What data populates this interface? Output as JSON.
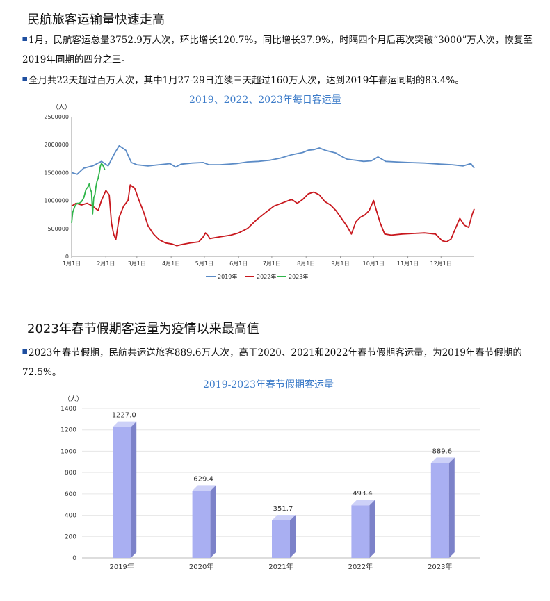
{
  "section1": {
    "title": "民航旅客运输量快速走高",
    "para1": "1月，民航客运总量3752.9万人次，环比增长120.7%，同比增长37.9%，时隔四个月后再次突破“3000”万人次，恢复至2019年同期的四分之三。",
    "para2": "全月共22天超过百万人次，其中1月27-29日连续三天超过160万人次，达到2019年春运同期的83.4%。"
  },
  "section2": {
    "title": "2023年春节假期客运量为疫情以来最高值",
    "para1": "2023年春节假期，民航共运送旅客889.6万人次，高于2020、2021和2022年春节假期客运量，为2019年春节假期的72.5%。"
  },
  "colors": {
    "s2019": "#5b8bc6",
    "s2022": "#c8171d",
    "s2023": "#2fb54a",
    "bar": "#a9aff2",
    "bar_side": "#7c82c9",
    "bar_top": "#cdd1f8",
    "title": "#3d7cc9"
  },
  "chart_data": [
    {
      "type": "line",
      "title": "2019、2022、2023年每日客运量",
      "ylabel": "（人）",
      "ylim": [
        0,
        2500000
      ],
      "yticks": [
        "0",
        "500000",
        "1000000",
        "1500000",
        "2000000",
        "2500000"
      ],
      "xticks": [
        "1月1日",
        "2月1日",
        "3月1日",
        "4月1日",
        "5月1日",
        "6月1日",
        "7月1日",
        "8月1日",
        "9月1日",
        "10月1日",
        "11月1日",
        "12月1日"
      ],
      "x_unit": "day of year (1-365)",
      "legend": [
        "2019年",
        "2022年",
        "2023年"
      ],
      "legend_position": "bottom",
      "series": [
        {
          "name": "2019年",
          "points": [
            [
              1,
              1500000
            ],
            [
              6,
              1470000
            ],
            [
              12,
              1580000
            ],
            [
              20,
              1620000
            ],
            [
              28,
              1700000
            ],
            [
              34,
              1620000
            ],
            [
              40,
              1850000
            ],
            [
              44,
              1980000
            ],
            [
              50,
              1900000
            ],
            [
              55,
              1680000
            ],
            [
              60,
              1640000
            ],
            [
              70,
              1620000
            ],
            [
              80,
              1640000
            ],
            [
              90,
              1660000
            ],
            [
              95,
              1600000
            ],
            [
              100,
              1650000
            ],
            [
              110,
              1670000
            ],
            [
              120,
              1680000
            ],
            [
              125,
              1640000
            ],
            [
              135,
              1640000
            ],
            [
              150,
              1660000
            ],
            [
              160,
              1690000
            ],
            [
              170,
              1700000
            ],
            [
              180,
              1720000
            ],
            [
              190,
              1760000
            ],
            [
              200,
              1820000
            ],
            [
              210,
              1860000
            ],
            [
              215,
              1900000
            ],
            [
              220,
              1910000
            ],
            [
              225,
              1940000
            ],
            [
              230,
              1900000
            ],
            [
              240,
              1850000
            ],
            [
              245,
              1790000
            ],
            [
              250,
              1740000
            ],
            [
              258,
              1720000
            ],
            [
              265,
              1700000
            ],
            [
              272,
              1710000
            ],
            [
              278,
              1780000
            ],
            [
              285,
              1700000
            ],
            [
              295,
              1690000
            ],
            [
              305,
              1680000
            ],
            [
              320,
              1670000
            ],
            [
              335,
              1650000
            ],
            [
              345,
              1640000
            ],
            [
              355,
              1620000
            ],
            [
              362,
              1660000
            ],
            [
              365,
              1580000
            ]
          ]
        },
        {
          "name": "2022年",
          "points": [
            [
              1,
              900000
            ],
            [
              5,
              950000
            ],
            [
              10,
              920000
            ],
            [
              15,
              950000
            ],
            [
              20,
              900000
            ],
            [
              25,
              820000
            ],
            [
              28,
              1000000
            ],
            [
              32,
              1180000
            ],
            [
              35,
              1100000
            ],
            [
              37,
              600000
            ],
            [
              39,
              400000
            ],
            [
              41,
              300000
            ],
            [
              44,
              700000
            ],
            [
              48,
              900000
            ],
            [
              52,
              1000000
            ],
            [
              54,
              1280000
            ],
            [
              58,
              1220000
            ],
            [
              62,
              1000000
            ],
            [
              66,
              800000
            ],
            [
              70,
              550000
            ],
            [
              75,
              400000
            ],
            [
              80,
              300000
            ],
            [
              86,
              240000
            ],
            [
              92,
              220000
            ],
            [
              96,
              190000
            ],
            [
              100,
              210000
            ],
            [
              108,
              240000
            ],
            [
              116,
              260000
            ],
            [
              120,
              350000
            ],
            [
              122,
              420000
            ],
            [
              124,
              380000
            ],
            [
              126,
              320000
            ],
            [
              135,
              350000
            ],
            [
              145,
              380000
            ],
            [
              152,
              420000
            ],
            [
              160,
              500000
            ],
            [
              168,
              650000
            ],
            [
              176,
              780000
            ],
            [
              184,
              900000
            ],
            [
              192,
              960000
            ],
            [
              200,
              1020000
            ],
            [
              205,
              950000
            ],
            [
              210,
              1020000
            ],
            [
              215,
              1120000
            ],
            [
              220,
              1150000
            ],
            [
              225,
              1100000
            ],
            [
              230,
              980000
            ],
            [
              235,
              920000
            ],
            [
              240,
              820000
            ],
            [
              245,
              680000
            ],
            [
              250,
              540000
            ],
            [
              254,
              400000
            ],
            [
              258,
              620000
            ],
            [
              262,
              700000
            ],
            [
              266,
              740000
            ],
            [
              270,
              820000
            ],
            [
              274,
              1000000
            ],
            [
              276,
              860000
            ],
            [
              280,
              600000
            ],
            [
              284,
              400000
            ],
            [
              290,
              380000
            ],
            [
              300,
              400000
            ],
            [
              310,
              410000
            ],
            [
              320,
              420000
            ],
            [
              330,
              400000
            ],
            [
              336,
              280000
            ],
            [
              340,
              260000
            ],
            [
              344,
              310000
            ],
            [
              348,
              500000
            ],
            [
              352,
              680000
            ],
            [
              356,
              560000
            ],
            [
              360,
              520000
            ],
            [
              363,
              740000
            ],
            [
              365,
              850000
            ]
          ]
        },
        {
          "name": "2023年",
          "points": [
            [
              1,
              600000
            ],
            [
              2,
              790000
            ],
            [
              4,
              900000
            ],
            [
              6,
              950000
            ],
            [
              8,
              950000
            ],
            [
              10,
              980000
            ],
            [
              12,
              1050000
            ],
            [
              14,
              1200000
            ],
            [
              16,
              1250000
            ],
            [
              17,
              1300000
            ],
            [
              18,
              1200000
            ],
            [
              19,
              1150000
            ],
            [
              20,
              760000
            ],
            [
              21,
              1050000
            ],
            [
              22,
              1100000
            ],
            [
              23,
              1250000
            ],
            [
              24,
              1350000
            ],
            [
              25,
              1400000
            ],
            [
              26,
              1500000
            ],
            [
              27,
              1620000
            ],
            [
              28,
              1660000
            ],
            [
              29,
              1640000
            ],
            [
              30,
              1600000
            ],
            [
              31,
              1550000
            ]
          ]
        }
      ]
    },
    {
      "type": "bar",
      "title": "2019-2023年春节假期客运量",
      "ylabel": "（人）",
      "ylim": [
        0,
        1400
      ],
      "yticks": [
        "0",
        "200",
        "400",
        "600",
        "800",
        "1000",
        "1200",
        "1400"
      ],
      "categories": [
        "2019年",
        "2020年",
        "2021年",
        "2022年",
        "2023年"
      ],
      "values": [
        1227.0,
        629.4,
        351.7,
        493.4,
        889.6
      ],
      "labels": [
        "1227.0",
        "629.4",
        "351.7",
        "493.4",
        "889.6"
      ]
    }
  ]
}
